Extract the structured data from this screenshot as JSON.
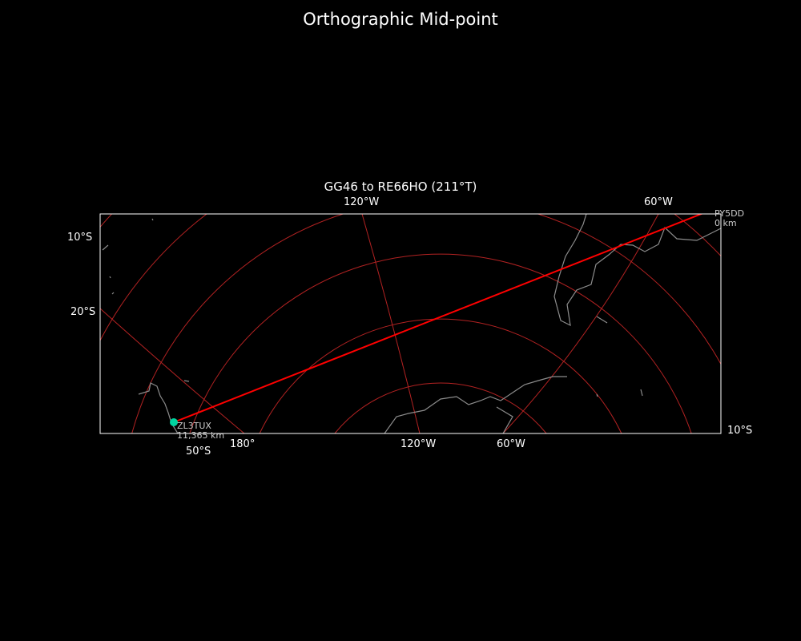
{
  "figure": {
    "title": "Orthographic Mid-point"
  },
  "map": {
    "title": "GG46 to RE66HO (211°T)",
    "projection": "orthographic",
    "colors": {
      "background": "#000000",
      "coastline": "#8c8c8c",
      "gridlines": "#b22222",
      "path": "#ff0000",
      "station": "#00d4a0",
      "frame": "#ffffff"
    },
    "tick_labels": {
      "top": [
        "120°W",
        "60°W"
      ],
      "left": [
        "10°S",
        "20°S"
      ],
      "bottom": [
        "50°S",
        "180°",
        "120°W",
        "60°W"
      ],
      "right": [
        "10°S"
      ]
    },
    "stations": [
      {
        "call": "PY5DD",
        "distance": "0 km"
      },
      {
        "call": "ZL3TUX",
        "distance": "11,365 km"
      }
    ]
  }
}
